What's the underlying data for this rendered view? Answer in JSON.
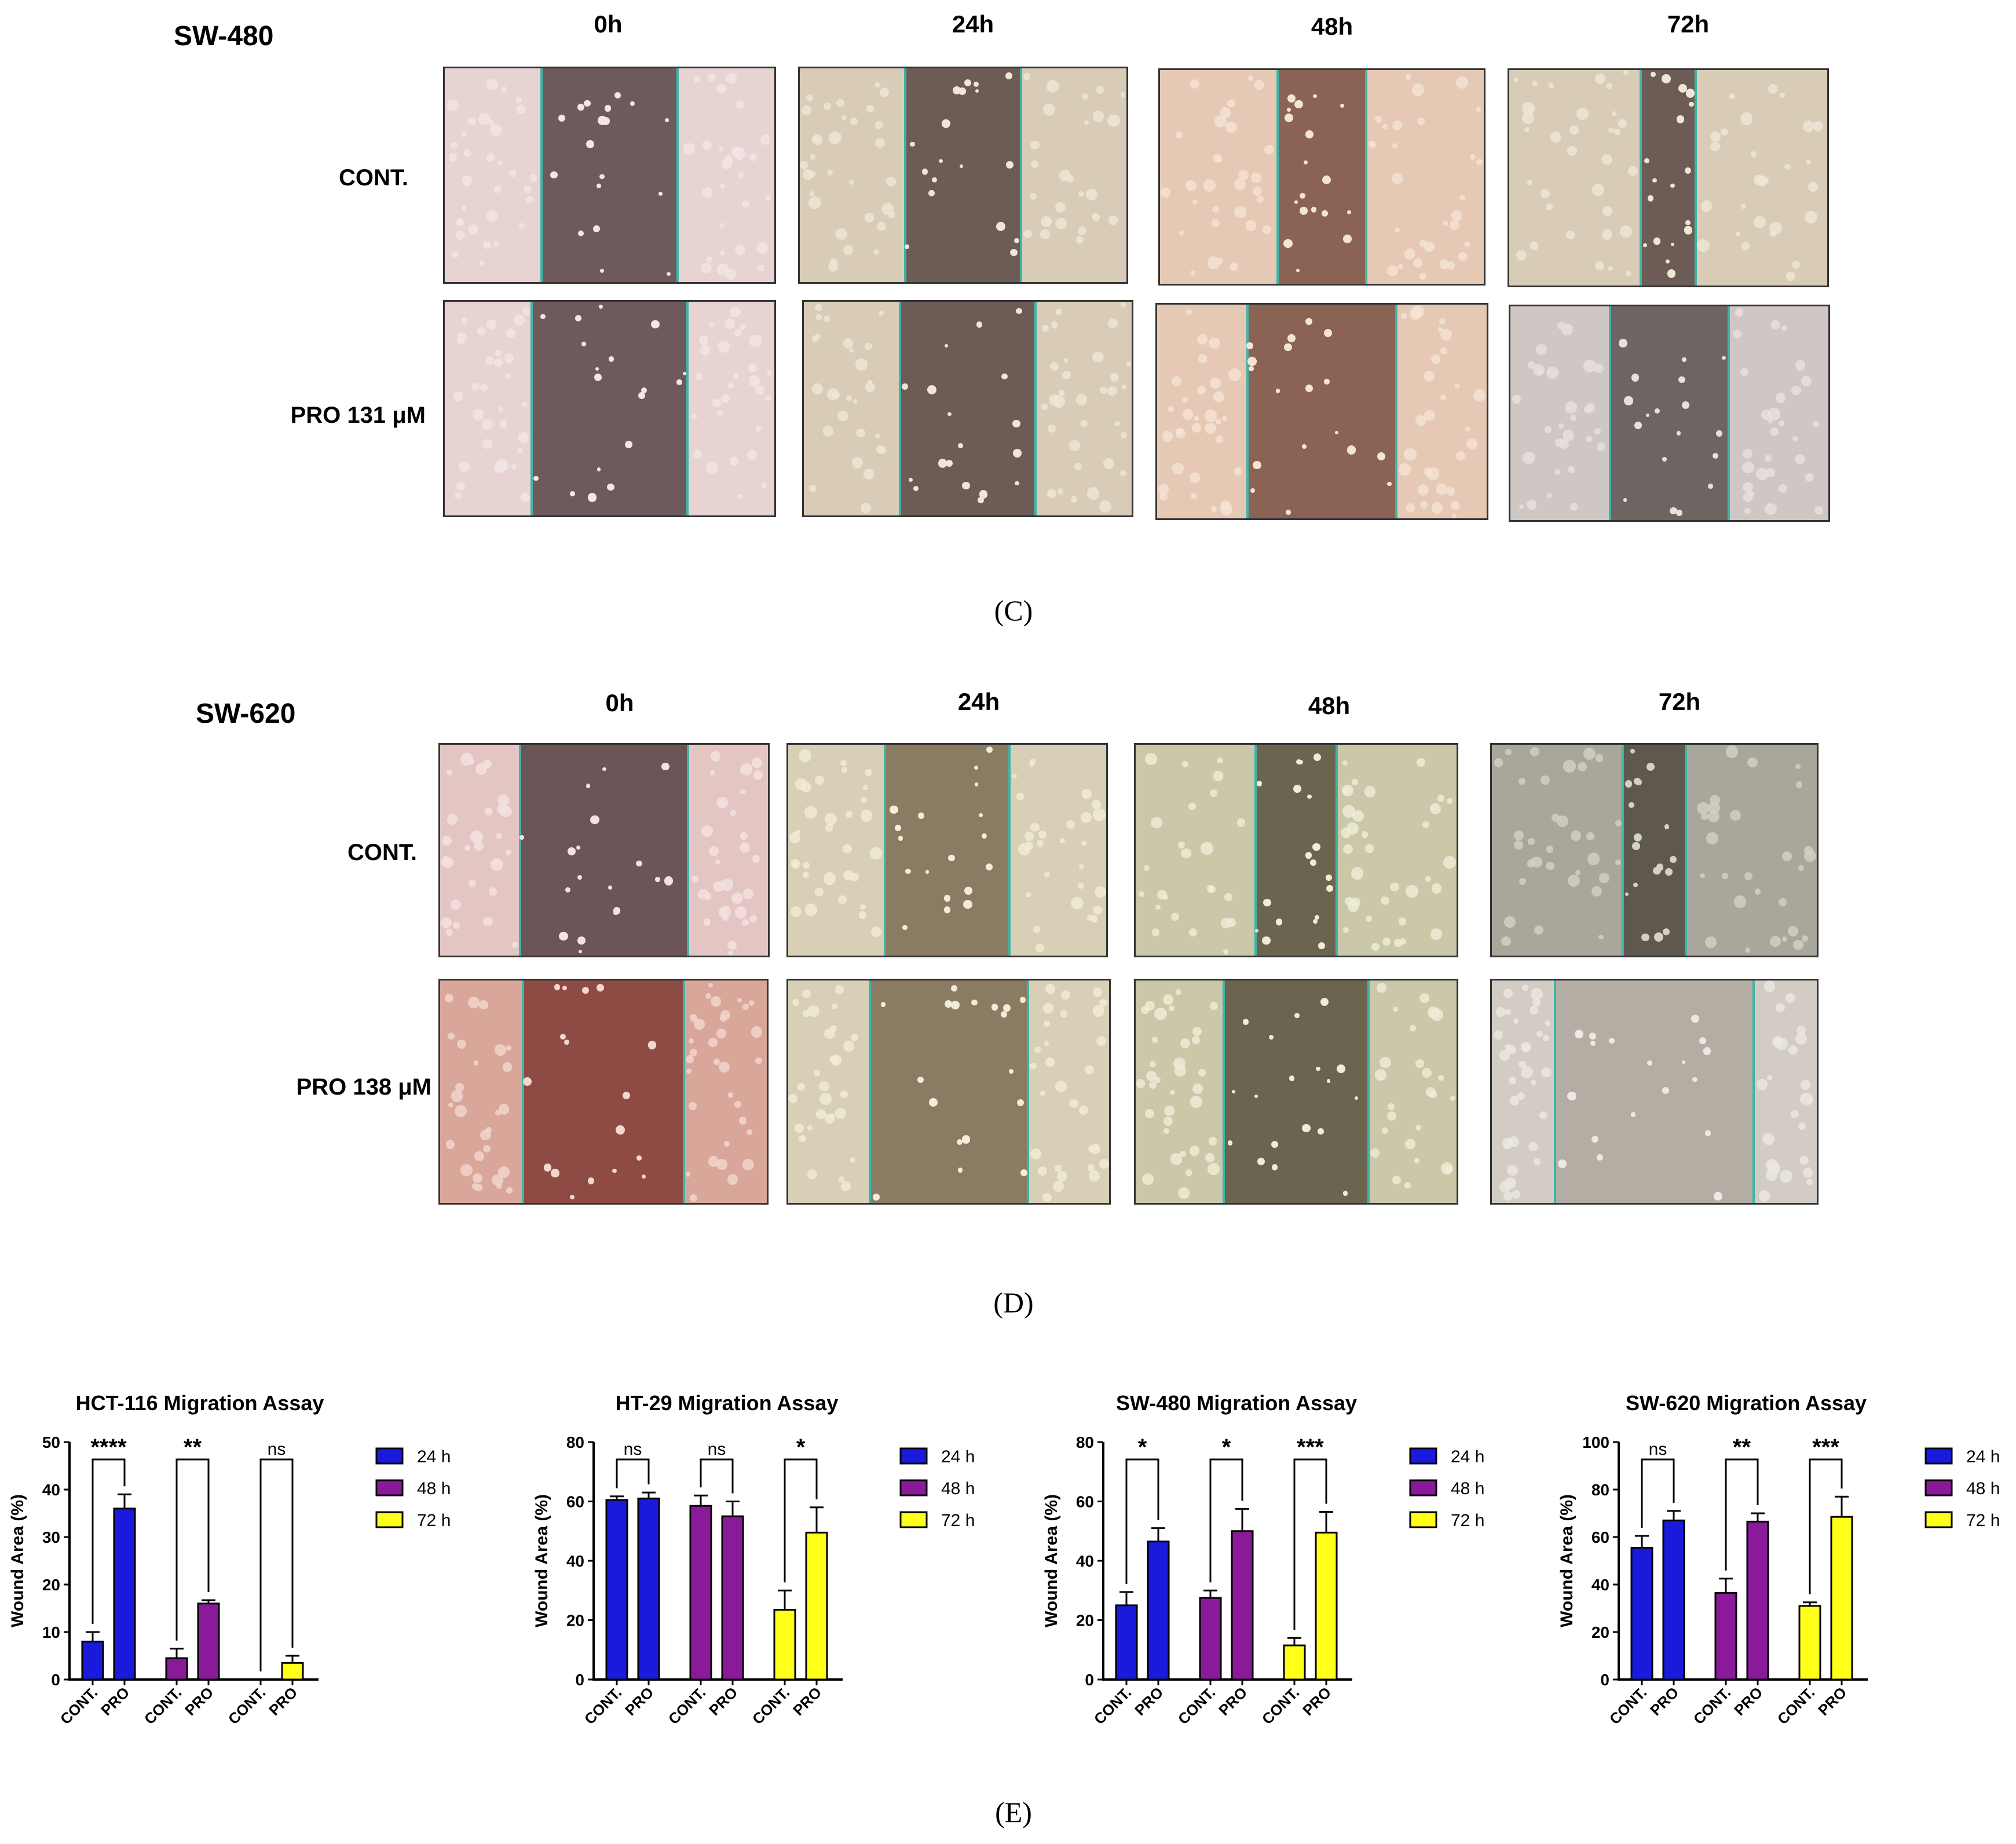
{
  "panel_c": {
    "cell_line": "SW-480",
    "columns": [
      "0h",
      "24h",
      "48h",
      "72h"
    ],
    "rows": [
      "CONT.",
      "PRO 131 μM"
    ],
    "letter": "(C)"
  },
  "panel_d": {
    "cell_line": "SW-620",
    "columns": [
      "0h",
      "24h",
      "48h",
      "72h"
    ],
    "rows": [
      "CONT.",
      "PRO 138 μM"
    ],
    "letter": "(D)"
  },
  "panel_e": {
    "letter": "(E)"
  },
  "colors": {
    "h24": "#1a1adc",
    "h48": "#8a1a9a",
    "h72": "#ffff1a"
  },
  "chart_data": [
    {
      "type": "bar",
      "title": "HCT-116 Migration Assay",
      "ylabel": "Wound Area (%)",
      "ylim": [
        0,
        50
      ],
      "yticks": [
        0,
        10,
        20,
        30,
        40,
        50
      ],
      "categories": [
        "CONT.",
        "PRO",
        "CONT.",
        "PRO",
        "CONT.",
        "PRO"
      ],
      "groups": [
        "24 h",
        "48 h",
        "72 h"
      ],
      "values": [
        8,
        36,
        4.5,
        16,
        0,
        3.5
      ],
      "errors": [
        2,
        3,
        2,
        0.7,
        0,
        1.5
      ],
      "significance": [
        "****",
        "**",
        "ns"
      ]
    },
    {
      "type": "bar",
      "title": "HT-29 Migration Assay",
      "ylabel": "Wound Area (%)",
      "ylim": [
        0,
        80
      ],
      "yticks": [
        0,
        20,
        40,
        60,
        80
      ],
      "categories": [
        "CONT.",
        "PRO",
        "CONT.",
        "PRO",
        "CONT.",
        "PRO"
      ],
      "groups": [
        "24 h",
        "48 h",
        "72 h"
      ],
      "values": [
        60.5,
        61,
        58.5,
        55,
        23.5,
        49.5
      ],
      "errors": [
        1.2,
        2,
        3.5,
        5,
        6.5,
        8.5
      ],
      "significance": [
        "ns",
        "ns",
        "*"
      ]
    },
    {
      "type": "bar",
      "title": "SW-480 Migration Assay",
      "ylabel": "Wound Area (%)",
      "ylim": [
        0,
        80
      ],
      "yticks": [
        0,
        20,
        40,
        60,
        80
      ],
      "categories": [
        "CONT.",
        "PRO",
        "CONT.",
        "PRO",
        "CONT.",
        "PRO"
      ],
      "groups": [
        "24 h",
        "48 h",
        "72 h"
      ],
      "values": [
        25,
        46.5,
        27.5,
        50,
        11.5,
        49.5
      ],
      "errors": [
        4.5,
        4.5,
        2.5,
        7.5,
        2.5,
        7
      ],
      "significance": [
        "*",
        "*",
        "***"
      ]
    },
    {
      "type": "bar",
      "title": "SW-620 Migration Assay",
      "ylabel": "Wound Area (%)",
      "ylim": [
        0,
        100
      ],
      "yticks": [
        0,
        20,
        40,
        60,
        80,
        100
      ],
      "categories": [
        "CONT.",
        "PRO",
        "CONT.",
        "PRO",
        "CONT.",
        "PRO"
      ],
      "groups": [
        "24 h",
        "48 h",
        "72 h"
      ],
      "values": [
        55.5,
        67,
        36.5,
        66.5,
        31,
        68.5
      ],
      "errors": [
        5,
        4,
        6,
        3.5,
        1.5,
        8.5
      ],
      "significance": [
        "ns",
        "**",
        "***"
      ]
    }
  ]
}
